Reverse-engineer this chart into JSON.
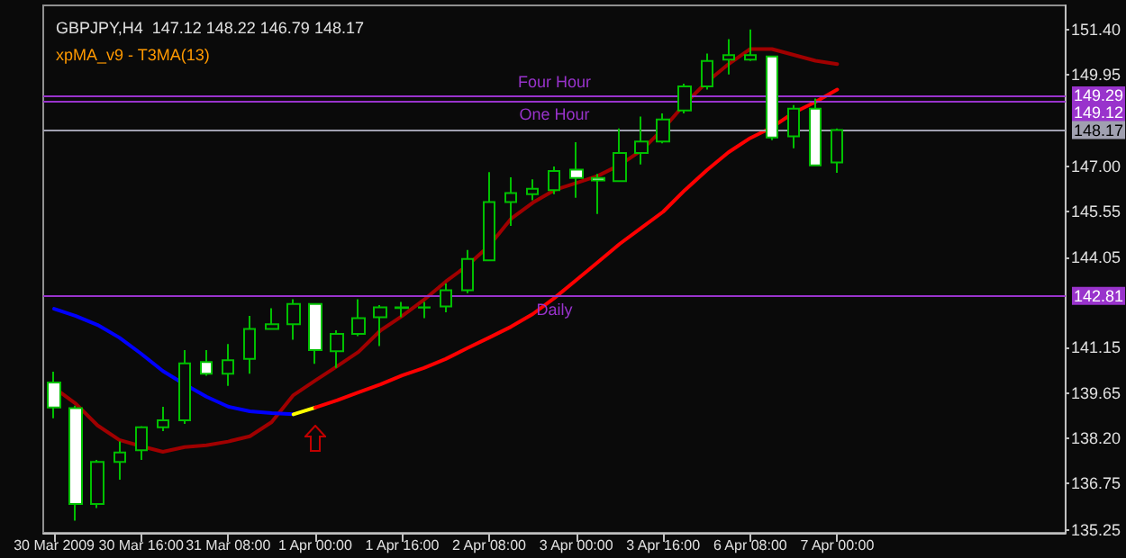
{
  "chart_data": {
    "type": "candlestick",
    "title": "GBPJPY,H4  147.12 148.22 146.79 148.17",
    "subtitle": "xpMA_v9 - T3MA(13)",
    "categories": [
      "30 Mar 2009",
      null,
      null,
      null,
      "30 Mar 16:00",
      null,
      null,
      null,
      "31 Mar 08:00",
      null,
      null,
      null,
      "1 Apr 00:00",
      null,
      null,
      null,
      "1 Apr 16:00",
      null,
      null,
      null,
      "2 Apr 08:00",
      null,
      null,
      null,
      "3 Apr 00:00",
      null,
      null,
      null,
      "3 Apr 16:00",
      null,
      null,
      null,
      "6 Apr 08:00",
      null,
      null,
      null,
      "7 Apr 00:00"
    ],
    "color": "#00c000",
    "ohlc": [
      [
        140.01,
        140.36,
        138.85,
        139.2
      ],
      [
        139.18,
        139.26,
        135.54,
        136.08
      ],
      [
        136.08,
        137.51,
        135.95,
        137.44
      ],
      [
        137.44,
        138.1,
        136.87,
        137.75
      ],
      [
        137.82,
        138.6,
        137.51,
        138.56
      ],
      [
        138.56,
        139.22,
        138.44,
        138.79
      ],
      [
        138.79,
        141.06,
        138.67,
        140.63
      ],
      [
        140.67,
        141.06,
        140.23,
        140.29
      ],
      [
        140.29,
        141.25,
        139.9,
        140.73
      ],
      [
        140.77,
        142.16,
        140.29,
        141.74
      ],
      [
        141.74,
        142.41,
        141.74,
        141.89
      ],
      [
        141.89,
        142.7,
        141.39,
        142.55
      ],
      [
        142.55,
        142.57,
        140.61,
        141.06
      ],
      [
        141.02,
        141.7,
        140.48,
        141.58
      ],
      [
        141.58,
        142.7,
        141.51,
        142.09
      ],
      [
        142.12,
        142.51,
        141.19,
        142.44
      ],
      [
        142.42,
        142.61,
        142.12,
        142.44
      ],
      [
        142.43,
        142.61,
        142.09,
        142.44
      ],
      [
        142.47,
        143.21,
        142.28,
        142.99
      ],
      [
        142.99,
        144.29,
        142.9,
        144.0
      ],
      [
        143.96,
        146.81,
        143.96,
        145.84
      ],
      [
        145.84,
        146.64,
        145.07,
        146.13
      ],
      [
        146.1,
        146.58,
        145.9,
        146.27
      ],
      [
        146.23,
        146.99,
        146.1,
        146.85
      ],
      [
        146.89,
        147.78,
        145.98,
        146.62
      ],
      [
        146.62,
        146.75,
        145.46,
        146.54
      ],
      [
        146.52,
        148.22,
        146.52,
        147.43
      ],
      [
        147.43,
        148.61,
        147.06,
        147.8
      ],
      [
        147.8,
        148.71,
        147.74,
        148.51
      ],
      [
        148.8,
        149.67,
        148.71,
        149.58
      ],
      [
        149.58,
        150.64,
        149.48,
        150.4
      ],
      [
        150.45,
        151.11,
        149.97,
        150.59
      ],
      [
        150.45,
        151.42,
        150.4,
        150.59
      ],
      [
        150.55,
        150.55,
        147.84,
        147.93
      ],
      [
        147.97,
        148.98,
        147.58,
        148.86
      ],
      [
        148.86,
        149.19,
        147.03,
        147.03
      ],
      [
        147.12,
        148.22,
        146.79,
        148.17
      ]
    ],
    "series": [
      {
        "type": "line",
        "color": "#a00000",
        "values": [
          139.84,
          139.32,
          138.62,
          138.15,
          137.95,
          137.77,
          137.92,
          137.98,
          138.1,
          138.27,
          138.73,
          139.6,
          140.07,
          140.53,
          141.0,
          141.69,
          142.16,
          142.68,
          143.27,
          143.79,
          144.43,
          145.3,
          145.82,
          146.23,
          146.46,
          146.69,
          147.04,
          147.51,
          148.21,
          149.02,
          149.72,
          150.3,
          150.79,
          150.79,
          150.6,
          150.41,
          150.3
        ]
      },
      {
        "type": "line",
        "color": "#0000ff",
        "values": [
          142.39,
          142.16,
          141.87,
          141.46,
          140.94,
          140.38,
          139.95,
          139.55,
          139.23,
          139.08,
          139.02,
          138.98,
          null,
          null,
          null,
          null,
          null,
          null,
          null,
          null,
          null,
          null,
          null,
          null,
          null,
          null,
          null,
          null,
          null,
          null,
          null,
          null,
          null,
          null,
          null,
          null,
          null
        ]
      },
      {
        "type": "line",
        "color": "#ffff00",
        "values": [
          null,
          null,
          null,
          null,
          null,
          null,
          null,
          null,
          null,
          null,
          null,
          138.98,
          139.2,
          null,
          null,
          null,
          null,
          null,
          null,
          null,
          null,
          null,
          null,
          null,
          null,
          null,
          null,
          null,
          null,
          null,
          null,
          null,
          null,
          null,
          null,
          null,
          null
        ]
      },
      {
        "type": "line",
        "color": "#ff0000",
        "values": [
          null,
          null,
          null,
          null,
          null,
          null,
          null,
          null,
          null,
          null,
          null,
          null,
          139.2,
          139.43,
          139.69,
          139.95,
          140.24,
          140.48,
          140.77,
          141.12,
          141.46,
          141.81,
          142.22,
          142.74,
          143.32,
          143.9,
          144.49,
          145.01,
          145.53,
          146.23,
          146.87,
          147.45,
          147.91,
          148.26,
          148.73,
          149.08,
          149.48
        ]
      }
    ],
    "ylim": [
      135.15,
      152.2
    ],
    "yticks": [
      {
        "value": 135.25,
        "label": "135.25"
      },
      {
        "value": 136.75,
        "label": "136.75"
      },
      {
        "value": 138.2,
        "label": "138.20"
      },
      {
        "value": 139.65,
        "label": "139.65"
      },
      {
        "value": 141.15,
        "label": "141.15"
      },
      {
        "value": 144.05,
        "label": "144.05"
      },
      {
        "value": 145.55,
        "label": "145.55"
      },
      {
        "value": 147.0,
        "label": "147.00"
      },
      {
        "value": 149.95,
        "label": "149.95"
      },
      {
        "value": 151.4,
        "label": "151.40"
      }
    ],
    "ref_lines": [
      {
        "axis": "y",
        "value": 149.29,
        "label": "Four Hour",
        "color": "#9933cc"
      },
      {
        "axis": "y",
        "value": 149.12,
        "label": "One Hour",
        "color": "#9933cc"
      },
      {
        "axis": "y",
        "value": 148.17,
        "label": null,
        "color": "#a0a0b0"
      },
      {
        "axis": "y",
        "value": 142.81,
        "label": "Daily",
        "color": "#9933cc"
      }
    ],
    "annotations": [
      "149.29",
      "149.12",
      "148.17",
      "142.81"
    ],
    "grid": false
  }
}
